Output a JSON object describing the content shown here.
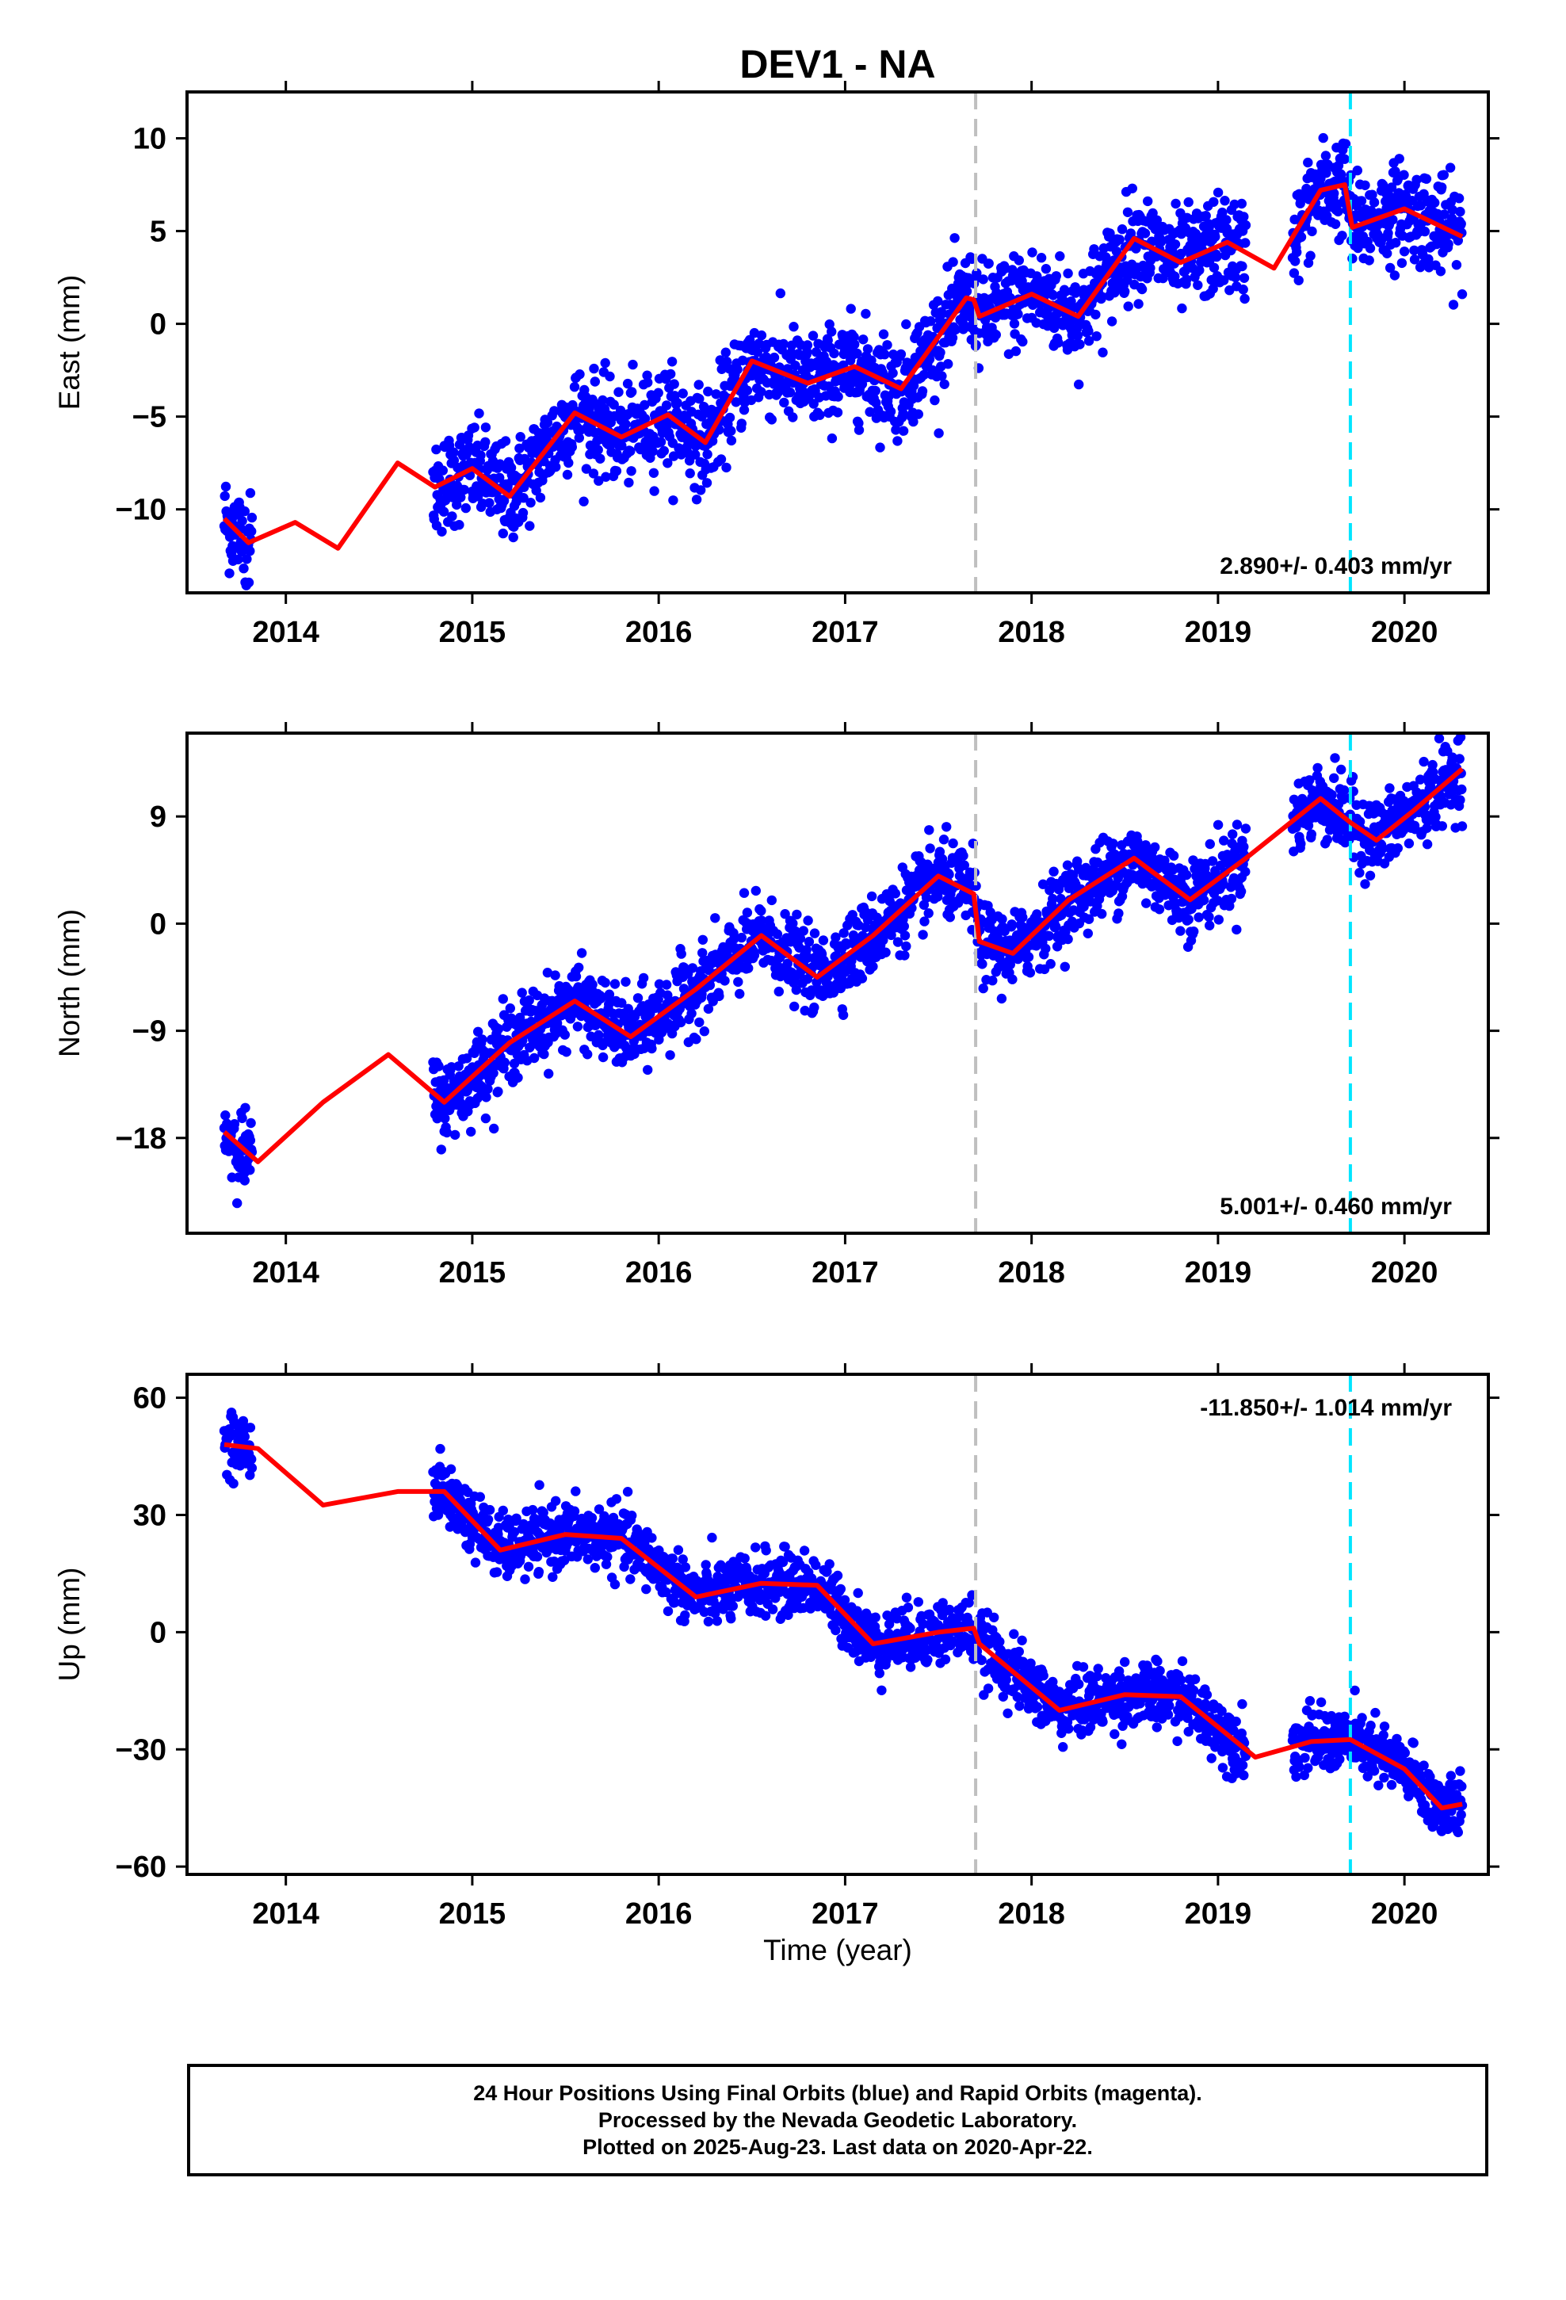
{
  "title": "DEV1 - NA",
  "xlabel": "Time (year)",
  "x_ticks": [
    2014,
    2015,
    2016,
    2017,
    2018,
    2019,
    2020
  ],
  "xlim": [
    2013.47,
    2020.45
  ],
  "colors": {
    "data": "#0000ff",
    "model": "#ff0000",
    "equipment_change": "#bfbfbf",
    "earthquake": "#00e5ff",
    "axis": "#000000"
  },
  "vertical_lines": [
    {
      "x": 2017.7,
      "color": "#bfbfbf",
      "style": "dashed"
    },
    {
      "x": 2019.71,
      "color": "#00e5ff",
      "style": "dashed"
    }
  ],
  "caption": [
    "24 Hour Positions Using Final Orbits (blue) and Rapid Orbits (magenta).",
    "Processed by the Nevada Geodetic Laboratory.",
    "Plotted on 2025-Aug-23. Last data on 2020-Apr-22."
  ],
  "chart_data": [
    {
      "type": "scatter",
      "ylabel": "East (mm)",
      "ylim": [
        -14.5,
        12.5
      ],
      "y_ticks": [
        10,
        5,
        0,
        -5,
        -10
      ],
      "y_tick_labels": [
        "10",
        "5",
        "0",
        "−5",
        "−10"
      ],
      "rate_label": "2.890+/- 0.403 mm/yr",
      "rate_position": "bottom-right",
      "noise": 1.3,
      "data_segments": [
        [
          2013.67,
          2013.82
        ],
        [
          2014.79,
          2019.15
        ],
        [
          2019.4,
          2020.31
        ]
      ],
      "model": [
        [
          2013.67,
          -10.5
        ],
        [
          2013.8,
          -11.8
        ],
        [
          2014.05,
          -10.7
        ],
        [
          2014.28,
          -12.1
        ],
        [
          2014.6,
          -7.5
        ],
        [
          2014.8,
          -8.8
        ],
        [
          2015.0,
          -7.8
        ],
        [
          2015.2,
          -9.3
        ],
        [
          2015.55,
          -4.8
        ],
        [
          2015.8,
          -6.1
        ],
        [
          2016.05,
          -4.9
        ],
        [
          2016.25,
          -6.4
        ],
        [
          2016.5,
          -2.0
        ],
        [
          2016.8,
          -3.2
        ],
        [
          2017.05,
          -2.3
        ],
        [
          2017.3,
          -3.5
        ],
        [
          2017.65,
          1.4
        ],
        [
          2017.69,
          1.3
        ],
        [
          2017.72,
          0.4
        ],
        [
          2018.0,
          1.6
        ],
        [
          2018.25,
          0.4
        ],
        [
          2018.55,
          4.6
        ],
        [
          2018.8,
          3.3
        ],
        [
          2019.05,
          4.4
        ],
        [
          2019.3,
          3.0
        ],
        [
          2019.55,
          7.2
        ],
        [
          2019.68,
          7.5
        ],
        [
          2019.72,
          5.2
        ],
        [
          2020.0,
          6.2
        ],
        [
          2020.31,
          4.7
        ]
      ]
    },
    {
      "type": "scatter",
      "ylabel": "North (mm)",
      "ylim": [
        -26,
        16
      ],
      "y_ticks": [
        9,
        0,
        -9,
        -18
      ],
      "y_tick_labels": [
        "9",
        "0",
        "−9",
        "−18"
      ],
      "rate_label": "5.001+/- 0.460 mm/yr",
      "rate_position": "bottom-right",
      "noise": 1.6,
      "data_segments": [
        [
          2013.67,
          2013.82
        ],
        [
          2014.79,
          2019.15
        ],
        [
          2019.4,
          2020.31
        ]
      ],
      "model": [
        [
          2013.67,
          -17.5
        ],
        [
          2013.85,
          -20.0
        ],
        [
          2014.2,
          -15.0
        ],
        [
          2014.55,
          -11.0
        ],
        [
          2014.85,
          -15.0
        ],
        [
          2015.2,
          -10.0
        ],
        [
          2015.55,
          -6.5
        ],
        [
          2015.85,
          -9.5
        ],
        [
          2016.2,
          -5.5
        ],
        [
          2016.55,
          -1.0
        ],
        [
          2016.85,
          -4.5
        ],
        [
          2017.15,
          -1.0
        ],
        [
          2017.5,
          4.0
        ],
        [
          2017.69,
          2.5
        ],
        [
          2017.72,
          -1.5
        ],
        [
          2017.9,
          -2.5
        ],
        [
          2018.2,
          2.0
        ],
        [
          2018.55,
          5.5
        ],
        [
          2018.85,
          2.0
        ],
        [
          2019.15,
          5.5
        ],
        [
          2019.55,
          10.5
        ],
        [
          2019.71,
          8.5
        ],
        [
          2019.85,
          7.0
        ],
        [
          2020.05,
          9.5
        ],
        [
          2020.31,
          13.0
        ]
      ]
    },
    {
      "type": "scatter",
      "ylabel": "Up (mm)",
      "ylim": [
        -62,
        66
      ],
      "y_ticks": [
        60,
        30,
        0,
        -30,
        -60
      ],
      "y_tick_labels": [
        "60",
        "30",
        "0",
        "−30",
        "−60"
      ],
      "rate_label": "-11.850+/- 1.014 mm/yr",
      "rate_position": "top-right",
      "noise": 4.0,
      "data_segments": [
        [
          2013.67,
          2013.82
        ],
        [
          2014.79,
          2019.15
        ],
        [
          2019.4,
          2020.31
        ]
      ],
      "model": [
        [
          2013.67,
          48.0
        ],
        [
          2013.85,
          47.0
        ],
        [
          2014.2,
          32.5
        ],
        [
          2014.6,
          36.0
        ],
        [
          2014.85,
          36.0
        ],
        [
          2015.15,
          21.0
        ],
        [
          2015.5,
          25.0
        ],
        [
          2015.8,
          24.0
        ],
        [
          2016.2,
          9.0
        ],
        [
          2016.55,
          12.5
        ],
        [
          2016.85,
          12.0
        ],
        [
          2017.15,
          -3.0
        ],
        [
          2017.5,
          0.0
        ],
        [
          2017.69,
          1.0
        ],
        [
          2017.72,
          -3.0
        ],
        [
          2018.15,
          -20.0
        ],
        [
          2018.5,
          -16.0
        ],
        [
          2018.8,
          -16.5
        ],
        [
          2019.2,
          -32.0
        ],
        [
          2019.5,
          -28.0
        ],
        [
          2019.71,
          -27.5
        ],
        [
          2020.0,
          -35.0
        ],
        [
          2020.2,
          -45.0
        ],
        [
          2020.31,
          -44.0
        ]
      ]
    }
  ]
}
